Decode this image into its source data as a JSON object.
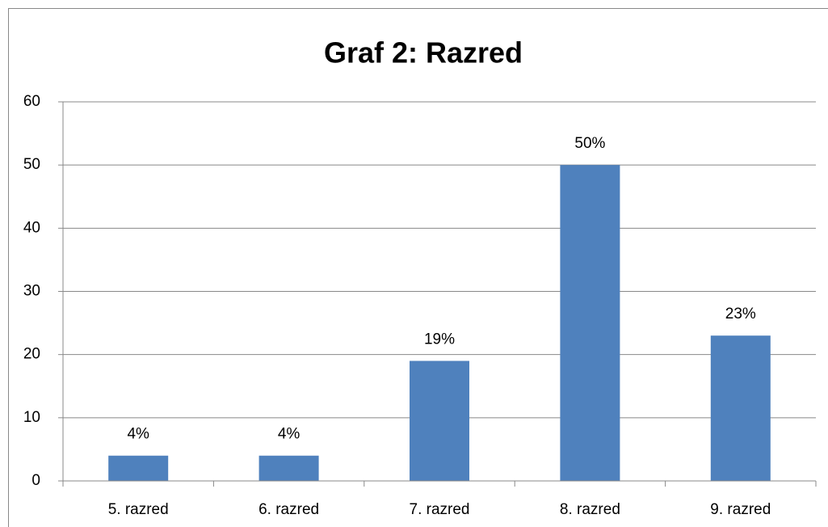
{
  "chart_data": {
    "type": "bar",
    "title": "Graf 2: Razred",
    "categories": [
      "5. razred",
      "6. razred",
      "7. razred",
      "8. razred",
      "9. razred"
    ],
    "values": [
      4,
      4,
      19,
      50,
      23
    ],
    "value_labels": [
      "4%",
      "4%",
      "19%",
      "50%",
      "23%"
    ],
    "color": "#4f81bd",
    "ylim": [
      0,
      60
    ],
    "yticks": [
      0,
      10,
      20,
      30,
      40,
      50,
      60
    ],
    "grid": true
  }
}
